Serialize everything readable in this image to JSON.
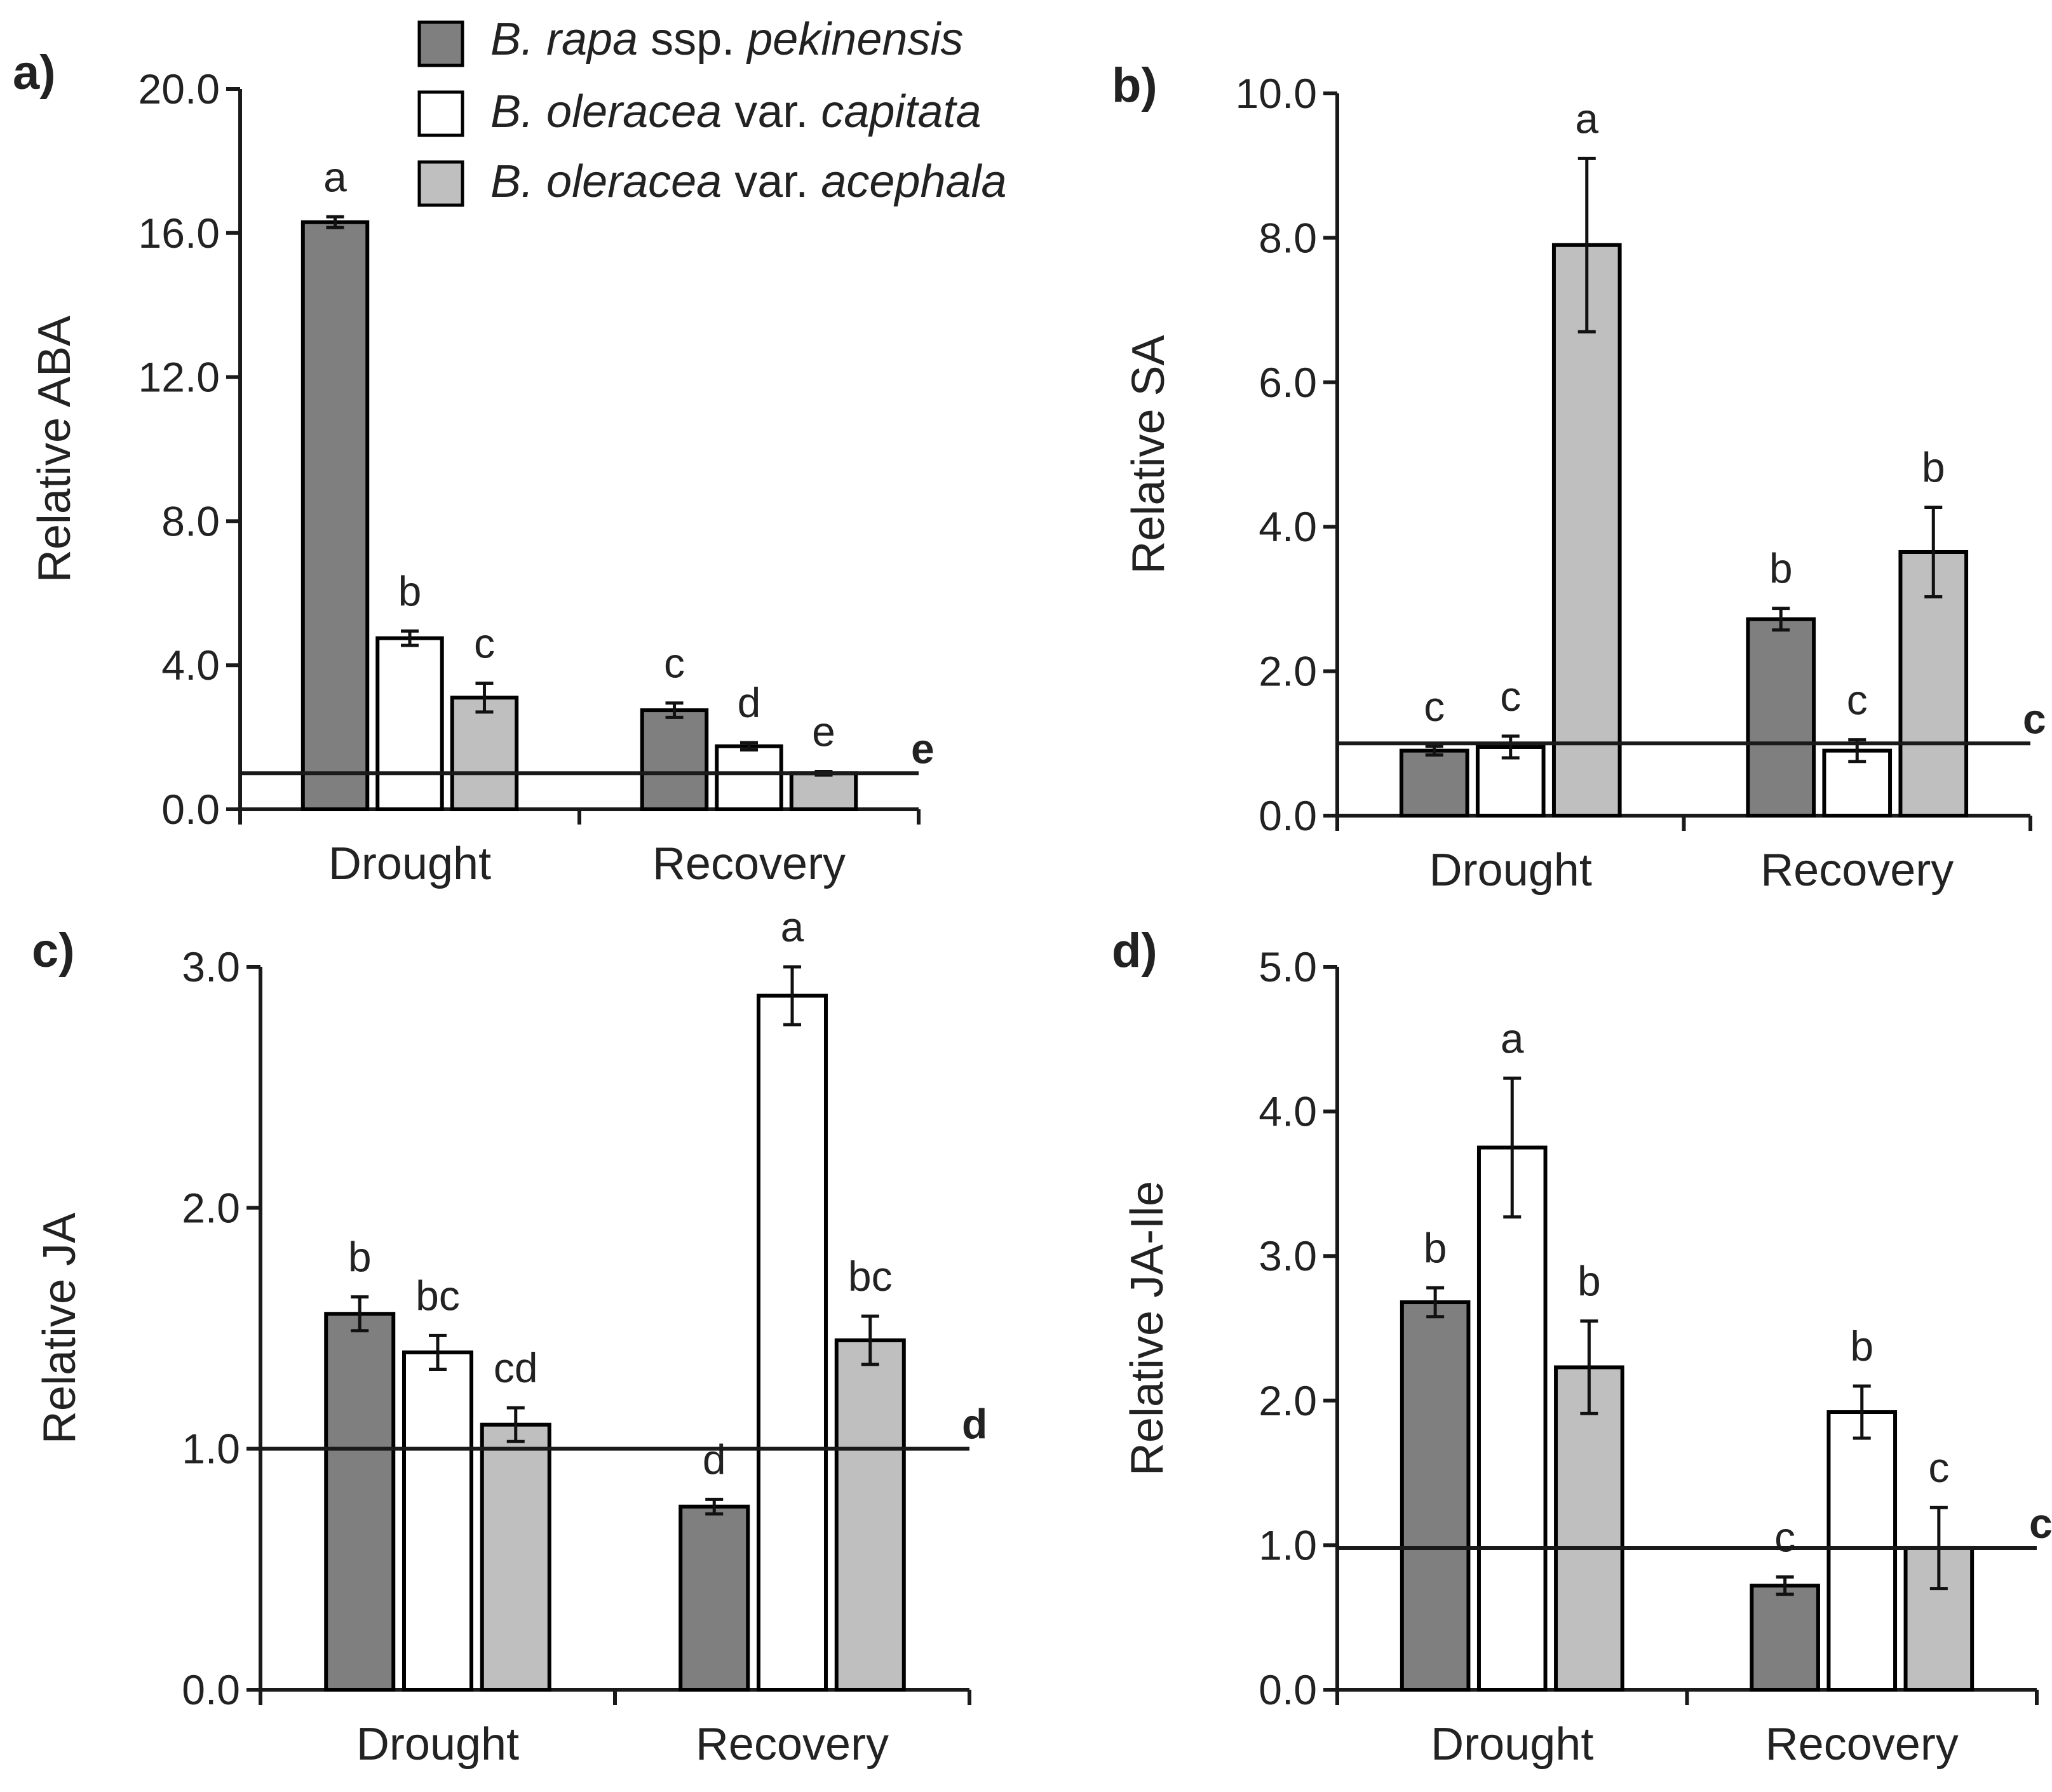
{
  "colors": {
    "series1": "#7f7f7f",
    "series2": "#ffffff",
    "series3": "#bfbfbf",
    "stroke": "#000000"
  },
  "legend": [
    {
      "genus": "B. rapa",
      "rank": "ssp.",
      "name": "pekinensis"
    },
    {
      "genus": "B. oleracea",
      "rank": "var.",
      "name": "capitata"
    },
    {
      "genus": "B. oleracea",
      "rank": "var.",
      "name": "acephala"
    }
  ],
  "chart_data": [
    {
      "type": "bar",
      "panel_label": "a)",
      "ylabel": "Relative ABA",
      "categories": [
        "Drought",
        "Recovery"
      ],
      "ylim": [
        0,
        20
      ],
      "yticks": [
        "0.0",
        "4.0",
        "8.0",
        "12.0",
        "16.0",
        "20.0"
      ],
      "reference_value": 1.0,
      "reference_label": "e",
      "series": [
        {
          "name": "B. rapa ssp. pekinensis",
          "values": [
            16.3,
            2.75
          ],
          "errors": [
            0.15,
            0.2
          ],
          "letters": [
            "a",
            "c"
          ]
        },
        {
          "name": "B. oleracea var. capitata",
          "values": [
            4.75,
            1.75
          ],
          "errors": [
            0.2,
            0.1
          ],
          "letters": [
            "b",
            "d"
          ]
        },
        {
          "name": "B. oleracea var. acephala",
          "values": [
            3.1,
            1.0
          ],
          "errors": [
            0.4,
            0.05
          ],
          "letters": [
            "c",
            "e"
          ]
        }
      ]
    },
    {
      "type": "bar",
      "panel_label": "b)",
      "ylabel": "Relative SA",
      "categories": [
        "Drought",
        "Recovery"
      ],
      "ylim": [
        0,
        10
      ],
      "yticks": [
        "0.0",
        "2.0",
        "4.0",
        "6.0",
        "8.0",
        "10.0"
      ],
      "reference_value": 1.0,
      "reference_label": "c",
      "series": [
        {
          "name": "B. rapa ssp. pekinensis",
          "values": [
            0.9,
            2.72
          ],
          "errors": [
            0.06,
            0.15
          ],
          "letters": [
            "c",
            "b"
          ]
        },
        {
          "name": "B. oleracea var. capitata",
          "values": [
            0.95,
            0.9
          ],
          "errors": [
            0.15,
            0.15
          ],
          "letters": [
            "c",
            "c"
          ]
        },
        {
          "name": "B. oleracea var. acephala",
          "values": [
            7.9,
            3.65
          ],
          "errors": [
            1.2,
            0.62
          ],
          "letters": [
            "a",
            "b"
          ]
        }
      ]
    },
    {
      "type": "bar",
      "panel_label": "c)",
      "ylabel": "Relative JA",
      "categories": [
        "Drought",
        "Recovery"
      ],
      "ylim": [
        0,
        3
      ],
      "yticks": [
        "0.0",
        "1.0",
        "2.0",
        "3.0"
      ],
      "reference_value": 1.0,
      "reference_label": "d",
      "series": [
        {
          "name": "B. rapa ssp. pekinensis",
          "values": [
            1.56,
            0.76
          ],
          "errors": [
            0.07,
            0.03
          ],
          "letters": [
            "b",
            "d"
          ]
        },
        {
          "name": "B. oleracea var. capitata",
          "values": [
            1.4,
            2.88
          ],
          "errors": [
            0.07,
            0.12
          ],
          "letters": [
            "bc",
            "a"
          ]
        },
        {
          "name": "B. oleracea var. acephala",
          "values": [
            1.1,
            1.45
          ],
          "errors": [
            0.07,
            0.1
          ],
          "letters": [
            "cd",
            "bc"
          ]
        }
      ]
    },
    {
      "type": "bar",
      "panel_label": "d)",
      "ylabel": "Relative JA-Ile",
      "categories": [
        "Drought",
        "Recovery"
      ],
      "ylim": [
        0,
        5
      ],
      "yticks": [
        "0.0",
        "1.0",
        "2.0",
        "3.0",
        "4.0",
        "5.0"
      ],
      "reference_value": 0.98,
      "reference_label": "c",
      "series": [
        {
          "name": "B. rapa ssp. pekinensis",
          "values": [
            2.68,
            0.72
          ],
          "errors": [
            0.1,
            0.06
          ],
          "letters": [
            "b",
            "c"
          ]
        },
        {
          "name": "B. oleracea var. capitata",
          "values": [
            3.75,
            1.92
          ],
          "errors": [
            0.48,
            0.18
          ],
          "letters": [
            "a",
            "b"
          ]
        },
        {
          "name": "B. oleracea var. acephala",
          "values": [
            2.23,
            0.98
          ],
          "errors": [
            0.32,
            0.28
          ],
          "letters": [
            "b",
            "c"
          ]
        }
      ]
    }
  ]
}
